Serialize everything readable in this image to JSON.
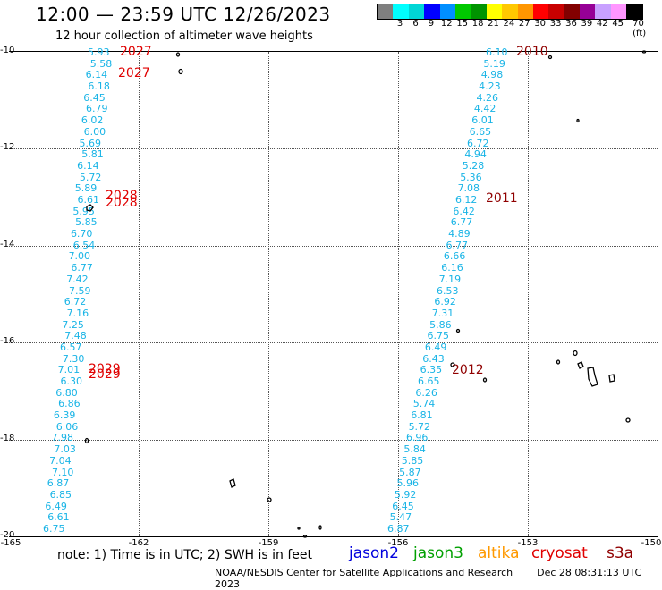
{
  "title": "12:00 — 23:59 UTC 12/26/2023",
  "subtitle": "12 hour collection of altimeter wave heights",
  "colorbar": {
    "colors": [
      "#7f7f7f",
      "#00ffff",
      "#00d6d6",
      "#0000ff",
      "#008fff",
      "#00c800",
      "#009400",
      "#ffff00",
      "#ffc800",
      "#ff9600",
      "#ff0000",
      "#c80000",
      "#820000",
      "#960096",
      "#c8a0ff",
      "#ff96ff",
      "#000000"
    ],
    "labels": [
      "3",
      "6",
      "9",
      "12",
      "15",
      "18",
      "21",
      "24",
      "27",
      "30",
      "33",
      "36",
      "39",
      "42",
      "45",
      "70 (ft)"
    ]
  },
  "axes": {
    "y_ticks": [
      "-10",
      "-12",
      "-14",
      "-16",
      "-18",
      "-20"
    ],
    "x_ticks": [
      "-165",
      "-162",
      "-159",
      "-156",
      "-153",
      "-150"
    ]
  },
  "track_left": [
    "5.93",
    "5.58",
    "6.14",
    "6.18",
    "6.45",
    "6.79",
    "6.02",
    "6.00",
    "5.69",
    "5.81",
    "6.14",
    "5.72",
    "5.89",
    "6.61",
    "5.95",
    "5.85",
    "6.70",
    "6.54",
    "7.00",
    "6.77",
    "7.42",
    "7.59",
    "6.72",
    "7.16",
    "7.25",
    "7.48",
    "6.57",
    "7.30",
    "7.01",
    "6.30",
    "6.80",
    "6.86",
    "6.39",
    "6.06",
    "7.98",
    "7.03",
    "7.04",
    "7.10",
    "6.87",
    "6.85",
    "6.49",
    "6.61",
    "6.75"
  ],
  "track_right": [
    "6.10",
    "5.19",
    "4.98",
    "4.23",
    "4.26",
    "4.42",
    "6.01",
    "6.65",
    "6.72",
    "4.94",
    "5.28",
    "5.36",
    "7.08",
    "6.12",
    "6.42",
    "6.77",
    "4.89",
    "6.77",
    "6.66",
    "6.16",
    "7.19",
    "6.53",
    "6.92",
    "7.31",
    "5.86",
    "6.75",
    "6.49",
    "6.43",
    "6.35",
    "6.65",
    "6.26",
    "5.74",
    "6.81",
    "5.72",
    "6.96",
    "5.84",
    "5.85",
    "5.87",
    "5.96",
    "5.92",
    "6.45",
    "5.47",
    "6.87"
  ],
  "pass_labels": {
    "left": [
      "2027",
      "2027",
      "2028",
      "2028",
      "2029",
      "2029"
    ],
    "right": [
      "2010",
      "2011",
      "2012"
    ]
  },
  "note": "note: 1) Time is in UTC; 2) SWH is in feet",
  "legend": [
    {
      "name": "jason2",
      "color": "#0000dd"
    },
    {
      "name": "jason3",
      "color": "#00a000"
    },
    {
      "name": "altika",
      "color": "#ff9900"
    },
    {
      "name": "cryosat",
      "color": "#e00000"
    },
    {
      "name": "s3a",
      "color": "#900000"
    }
  ],
  "credit": "NOAA/NESDIS Center for Satellite Applications and Research",
  "timestamp": "Dec 28 08:31:13 UTC 2023"
}
